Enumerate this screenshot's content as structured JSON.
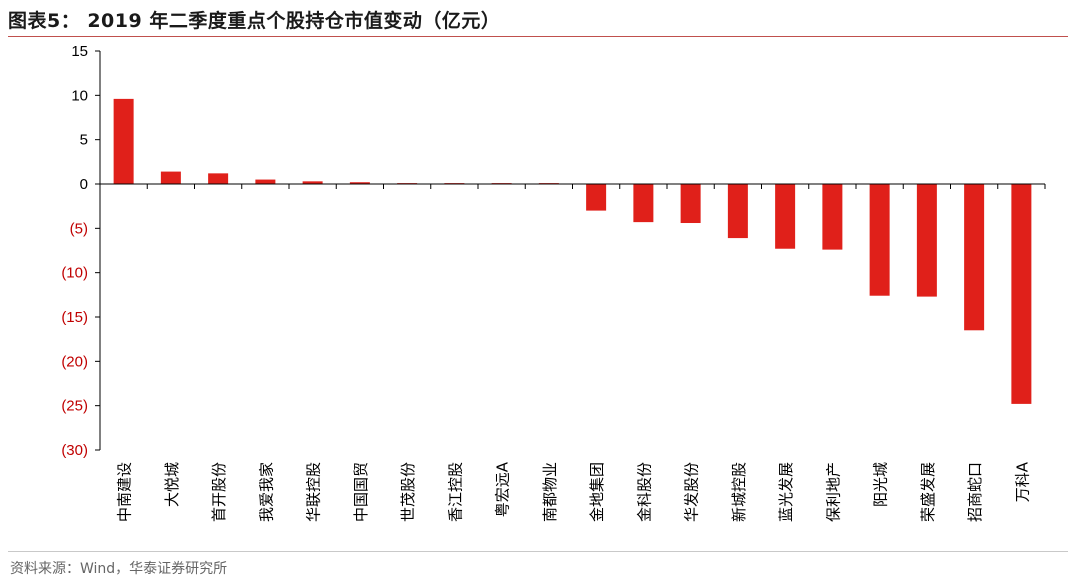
{
  "title": "图表5： 2019 年二季度重点个股持仓市值变动（亿元）",
  "source": "资料来源：Wind，华泰证券研究所",
  "colors": {
    "bar": "#e0201a",
    "negative_tick": "#c00000",
    "axis": "#000000",
    "rule": "#c0504d"
  },
  "chart_data": {
    "type": "bar",
    "title": "图表5： 2019 年二季度重点个股持仓市值变动（亿元）",
    "xlabel": "",
    "ylabel": "",
    "ylim": [
      -30,
      15
    ],
    "yticks": [
      15,
      10,
      5,
      0,
      -5,
      -10,
      -15,
      -20,
      -25,
      -30
    ],
    "ytick_labels": [
      "15",
      "10",
      "5",
      "0",
      "(5)",
      "(10)",
      "(15)",
      "(20)",
      "(25)",
      "(30)"
    ],
    "grid": false,
    "legend": "none",
    "categories": [
      "中南建设",
      "大悦城",
      "首开股份",
      "我爱我家",
      "华联控股",
      "中国国贸",
      "世茂股份",
      "香江控股",
      "粤宏远A",
      "南都物业",
      "金地集团",
      "金科股份",
      "华发股份",
      "新城控股",
      "蓝光发展",
      "保利地产",
      "阳光城",
      "荣盛发展",
      "招商蛇口",
      "万科A"
    ],
    "values": [
      9.6,
      1.4,
      1.2,
      0.5,
      0.3,
      0.2,
      0.1,
      0.1,
      0.1,
      0.1,
      -3.0,
      -4.3,
      -4.4,
      -6.1,
      -7.3,
      -7.4,
      -12.6,
      -12.7,
      -16.5,
      -24.8
    ]
  }
}
